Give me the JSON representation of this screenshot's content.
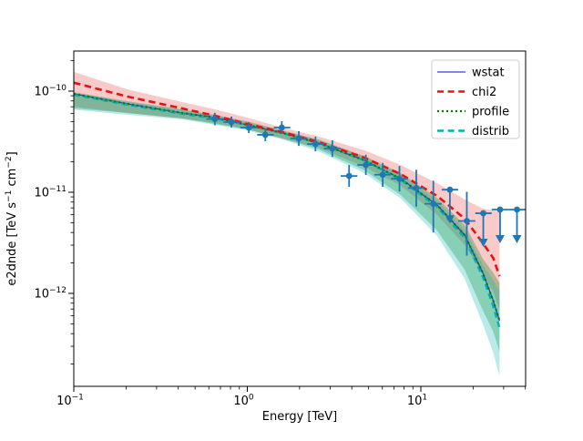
{
  "figure": {
    "background": "#ffffff"
  },
  "chart_data": {
    "type": "line",
    "title": "",
    "xlabel": "Energy [TeV]",
    "ylabel_tokens": [
      {
        "t": "e2dnde [TeV s"
      },
      {
        "t": "−1",
        "sup": true
      },
      {
        "t": " cm"
      },
      {
        "t": "−2",
        "sup": true
      },
      {
        "t": "]"
      }
    ],
    "xscale": "log",
    "yscale": "log",
    "xlim": [
      0.1,
      40.2
    ],
    "ylim": [
      1.2e-13,
      2.52e-10
    ],
    "grid": false,
    "xticks": [
      {
        "v": 0.1,
        "base": "10",
        "exp": "−1"
      },
      {
        "v": 1,
        "base": "10",
        "exp": "0"
      },
      {
        "v": 10,
        "base": "10",
        "exp": "1"
      }
    ],
    "yticks": [
      {
        "v": 1e-10,
        "base": "10",
        "exp": "−10"
      },
      {
        "v": 1e-11,
        "base": "10",
        "exp": "−11"
      },
      {
        "v": 1e-12,
        "base": "10",
        "exp": "−12"
      }
    ],
    "legend": {
      "position": "upper right",
      "entries": [
        {
          "label": "wstat",
          "color": "#3a3ad9",
          "style": "solid",
          "width": 1.3
        },
        {
          "label": "chi2",
          "color": "#e41414",
          "style": "dashed",
          "width": 2.6
        },
        {
          "label": "profile",
          "color": "#008000",
          "style": "dotted",
          "width": 2.2
        },
        {
          "label": "distrib",
          "color": "#00b2b2",
          "style": "dashed",
          "width": 2.4
        }
      ]
    },
    "curves_x": [
      0.1,
      0.204,
      0.421,
      0.651,
      0.994,
      1.59,
      2.58,
      4.72,
      7.66,
      12.4,
      17.9,
      22.8,
      26.1,
      28.4
    ],
    "series": [
      {
        "name": "wstat",
        "y": [
          9.4e-11,
          7.48e-11,
          6.08e-11,
          5.48e-11,
          4.64e-11,
          3.86e-11,
          3.06e-11,
          2.07e-11,
          1.36e-11,
          7.48e-12,
          3.77e-12,
          1.58e-12,
          8.5e-13,
          5.37e-13
        ]
      },
      {
        "name": "chi2",
        "y": [
          1.21e-10,
          8.83e-11,
          6.74e-11,
          5.71e-11,
          4.74e-11,
          3.94e-11,
          3.13e-11,
          2.2e-11,
          1.51e-11,
          9.2e-12,
          5.48e-12,
          3.13e-12,
          2.24e-12,
          1.48e-12
        ]
      },
      {
        "name": "profile",
        "y": [
          9.4e-11,
          7.48e-11,
          6.08e-11,
          5.48e-11,
          4.64e-11,
          3.86e-11,
          3.06e-11,
          2.07e-11,
          1.36e-11,
          7.48e-12,
          3.77e-12,
          1.58e-12,
          8.5e-13,
          5.37e-13
        ]
      },
      {
        "name": "distrib",
        "y": [
          9.21e-11,
          7.33e-11,
          5.96e-11,
          5.37e-11,
          4.64e-11,
          3.86e-11,
          3.06e-11,
          2.07e-11,
          1.33e-11,
          7.18e-12,
          3.53e-12,
          1.44e-12,
          7.5e-13,
          4.55e-13
        ]
      }
    ],
    "bands": [
      {
        "name": "chi2",
        "color": "rgba(229,35,35,0.24)",
        "y_hi": [
          1.55e-10,
          1.04e-10,
          7.8e-11,
          6.61e-11,
          5.48e-11,
          4.36e-11,
          3.55e-11,
          2.6e-11,
          1.86e-11,
          1.23e-11,
          8.47e-12,
          6.88e-12,
          6.6e-12,
          6.47e-12
        ],
        "y_lo": [
          7.03e-11,
          6.08e-11,
          5.37e-11,
          4.84e-11,
          4.19e-11,
          3.4e-11,
          2.76e-11,
          1.79e-11,
          1.16e-11,
          5.96e-12,
          3e-12,
          1.55e-12,
          1.05e-12,
          6.74e-13
        ]
      },
      {
        "name": "profile",
        "color": "rgba(0,128,0,0.28)",
        "y_hi": [
          9.79e-11,
          7.96e-11,
          6.61e-11,
          5.83e-11,
          5.04e-11,
          4.1e-11,
          3.33e-11,
          2.29e-11,
          1.55e-11,
          8.83e-12,
          4.74e-12,
          2.2e-12,
          1.6e-12,
          1.26e-12
        ],
        "y_lo": [
          6.74e-11,
          6.08e-11,
          5.37e-11,
          4.74e-11,
          4.19e-11,
          3.4e-11,
          2.65e-11,
          1.65e-11,
          9.4e-12,
          4.19e-12,
          1.71e-12,
          6.74e-13,
          4.2e-13,
          2.65e-13
        ]
      },
      {
        "name": "distrib",
        "color": "rgba(0,178,178,0.27)",
        "y_hi": [
          9.59e-11,
          7.8e-11,
          6.55e-11,
          5.71e-11,
          4.94e-11,
          4.02e-11,
          3.27e-11,
          2.24e-11,
          1.49e-11,
          8.31e-12,
          4.27e-12,
          1.92e-12,
          1.35e-12,
          1.06e-12
        ],
        "y_lo": [
          6.55e-11,
          5.83e-11,
          5.26e-11,
          4.64e-11,
          4.1e-11,
          3.33e-11,
          2.54e-11,
          1.55e-11,
          8.66e-12,
          3.7e-12,
          1.39e-12,
          4.94e-13,
          2.6e-13,
          1.51e-13
        ]
      }
    ],
    "flux_points": {
      "color": "#1f77b4",
      "points": [
        {
          "e": 0.65,
          "e_lo": 0.58,
          "e_hi": 0.73,
          "f": 5.3e-11,
          "f_lo": 4.6e-11,
          "f_hi": 6.1e-11,
          "ul": false
        },
        {
          "e": 0.81,
          "e_lo": 0.73,
          "e_hi": 0.91,
          "f": 4.94e-11,
          "f_lo": 4.35e-11,
          "f_hi": 5.6e-11,
          "ul": false
        },
        {
          "e": 1.02,
          "e_lo": 0.91,
          "e_hi": 1.14,
          "f": 4.36e-11,
          "f_lo": 3.85e-11,
          "f_hi": 4.95e-11,
          "ul": false
        },
        {
          "e": 1.27,
          "e_lo": 1.14,
          "e_hi": 1.42,
          "f": 3.7e-11,
          "f_lo": 3.2e-11,
          "f_hi": 4.28e-11,
          "ul": false
        },
        {
          "e": 1.58,
          "e_lo": 1.42,
          "e_hi": 1.77,
          "f": 4.36e-11,
          "f_lo": 3.78e-11,
          "f_hi": 5.04e-11,
          "ul": false
        },
        {
          "e": 1.98,
          "e_lo": 1.77,
          "e_hi": 2.21,
          "f": 3.4e-11,
          "f_lo": 2.87e-11,
          "f_hi": 4.02e-11,
          "ul": false
        },
        {
          "e": 2.47,
          "e_lo": 2.21,
          "e_hi": 2.76,
          "f": 3e-11,
          "f_lo": 2.54e-11,
          "f_hi": 3.55e-11,
          "ul": false
        },
        {
          "e": 3.09,
          "e_lo": 2.76,
          "e_hi": 3.45,
          "f": 2.7e-11,
          "f_lo": 2.24e-11,
          "f_hi": 3.27e-11,
          "ul": false
        },
        {
          "e": 3.86,
          "e_lo": 3.45,
          "e_hi": 4.31,
          "f": 1.45e-11,
          "f_lo": 1.13e-11,
          "f_hi": 1.86e-11,
          "ul": false
        },
        {
          "e": 4.82,
          "e_lo": 4.31,
          "e_hi": 5.39,
          "f": 1.86e-11,
          "f_lo": 1.48e-11,
          "f_hi": 2.35e-11,
          "ul": false
        },
        {
          "e": 6.03,
          "e_lo": 5.39,
          "e_hi": 6.74,
          "f": 1.49e-11,
          "f_lo": 1.13e-11,
          "f_hi": 1.95e-11,
          "ul": false
        },
        {
          "e": 7.53,
          "e_lo": 6.74,
          "e_hi": 8.42,
          "f": 1.36e-11,
          "f_lo": 1.02e-11,
          "f_hi": 1.82e-11,
          "ul": false
        },
        {
          "e": 9.41,
          "e_lo": 8.42,
          "e_hi": 10.5,
          "f": 1.1e-11,
          "f_lo": 7.2e-12,
          "f_hi": 1.67e-11,
          "ul": false
        },
        {
          "e": 11.8,
          "e_lo": 10.5,
          "e_hi": 13.2,
          "f": 7.7e-12,
          "f_lo": 4e-12,
          "f_hi": 1.3e-11,
          "ul": false
        },
        {
          "e": 14.7,
          "e_lo": 13.2,
          "e_hi": 16.4,
          "f": 1.06e-11,
          "f_lo": null,
          "f_hi": null,
          "ul": true
        },
        {
          "e": 18.4,
          "e_lo": 16.4,
          "e_hi": 20.6,
          "f": 5.2e-12,
          "f_lo": 2.36e-12,
          "f_hi": 1.01e-11,
          "ul": false
        },
        {
          "e": 22.9,
          "e_lo": 20.6,
          "e_hi": 25.6,
          "f": 6.2e-12,
          "f_lo": null,
          "f_hi": null,
          "ul": true
        },
        {
          "e": 28.6,
          "e_lo": 25.6,
          "e_hi": 32.0,
          "f": 6.74e-12,
          "f_lo": null,
          "f_hi": null,
          "ul": true
        },
        {
          "e": 35.8,
          "e_lo": 32.0,
          "e_hi": 40.0,
          "f": 6.74e-12,
          "f_lo": null,
          "f_hi": null,
          "ul": true
        }
      ]
    }
  }
}
